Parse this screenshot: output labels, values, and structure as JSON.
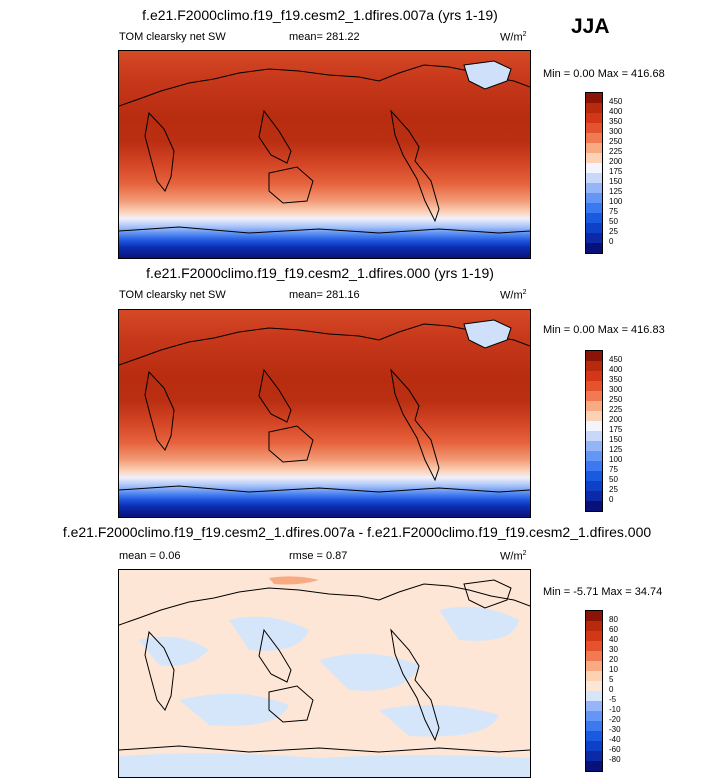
{
  "season": "JJA",
  "panels": [
    {
      "title": "f.e21.F2000climo.f19_f19.cesm2_1.dfires.007a (yrs 1-19)",
      "left": "TOM clearsky net SW",
      "center": "mean= 281.22",
      "units": "W/m",
      "units_sup": "2",
      "minmax": "Min =   0.00 Max = 416.68",
      "cbar_labels": [
        "450",
        "400",
        "350",
        "300",
        "250",
        "225",
        "200",
        "175",
        "150",
        "125",
        "100",
        "75",
        "50",
        "25",
        "0"
      ]
    },
    {
      "title": "f.e21.F2000climo.f19_f19.cesm2_1.dfires.000 (yrs 1-19)",
      "left": "TOM clearsky net SW",
      "center": "mean= 281.16",
      "units": "W/m",
      "units_sup": "2",
      "minmax": "Min =   0.00 Max = 416.83",
      "cbar_labels": [
        "450",
        "400",
        "350",
        "300",
        "250",
        "225",
        "200",
        "175",
        "150",
        "125",
        "100",
        "75",
        "50",
        "25",
        "0"
      ]
    },
    {
      "title": "f.e21.F2000climo.f19_f19.cesm2_1.dfires.007a - f.e21.F2000climo.f19_f19.cesm2_1.dfires.000",
      "left": "mean =   0.06",
      "center": "rmse =   0.87",
      "units": "W/m",
      "units_sup": "2",
      "minmax": "Min =  -5.71 Max =  34.74",
      "cbar_labels": [
        "80",
        "60",
        "40",
        "30",
        "20",
        "10",
        "5",
        "0",
        "-5",
        "-10",
        "-20",
        "-30",
        "-40",
        "-60",
        "-80"
      ]
    }
  ],
  "chart_data": [
    {
      "type": "heatmap",
      "title": "f.e21.F2000climo.f19_f19.cesm2_1.dfires.007a (yrs 1-19)",
      "variable": "TOM clearsky net SW",
      "units": "W/m2",
      "mean": 281.22,
      "min": 0.0,
      "max": 416.68,
      "contour_levels": [
        0,
        25,
        50,
        75,
        100,
        125,
        150,
        175,
        200,
        225,
        250,
        300,
        350,
        400,
        450
      ],
      "colors": [
        "#08107a",
        "#0a2aa8",
        "#0e40c8",
        "#1a5ae0",
        "#3c78f0",
        "#6496f5",
        "#96b4f8",
        "#c8d8f8",
        "#f4f4fc",
        "#fbd2b4",
        "#f8aa82",
        "#f27a52",
        "#e4522e",
        "#d23818",
        "#b82a0e",
        "#8a1406"
      ]
    },
    {
      "type": "heatmap",
      "title": "f.e21.F2000climo.f19_f19.cesm2_1.dfires.000 (yrs 1-19)",
      "variable": "TOM clearsky net SW",
      "units": "W/m2",
      "mean": 281.16,
      "min": 0.0,
      "max": 416.83,
      "contour_levels": [
        0,
        25,
        50,
        75,
        100,
        125,
        150,
        175,
        200,
        225,
        250,
        300,
        350,
        400,
        450
      ],
      "colors": [
        "#08107a",
        "#0a2aa8",
        "#0e40c8",
        "#1a5ae0",
        "#3c78f0",
        "#6496f5",
        "#96b4f8",
        "#c8d8f8",
        "#f4f4fc",
        "#fbd2b4",
        "#f8aa82",
        "#f27a52",
        "#e4522e",
        "#d23818",
        "#b82a0e",
        "#8a1406"
      ]
    },
    {
      "type": "heatmap",
      "title": "f.e21.F2000climo.f19_f19.cesm2_1.dfires.007a - f.e21.F2000climo.f19_f19.cesm2_1.dfires.000",
      "units": "W/m2",
      "mean": 0.06,
      "rmse": 0.87,
      "min": -5.71,
      "max": 34.74,
      "contour_levels": [
        -80,
        -60,
        -40,
        -30,
        -20,
        -10,
        -5,
        0,
        5,
        10,
        20,
        30,
        40,
        60,
        80
      ],
      "colors": [
        "#08107a",
        "#0a2aa8",
        "#0e40c8",
        "#1a5ae0",
        "#3c78f0",
        "#6496f5",
        "#96b4f8",
        "#d6e6fa",
        "#fde6d6",
        "#fbd2b4",
        "#f8aa82",
        "#f27a52",
        "#e4522e",
        "#d23818",
        "#b82a0e",
        "#8a1406"
      ]
    }
  ]
}
